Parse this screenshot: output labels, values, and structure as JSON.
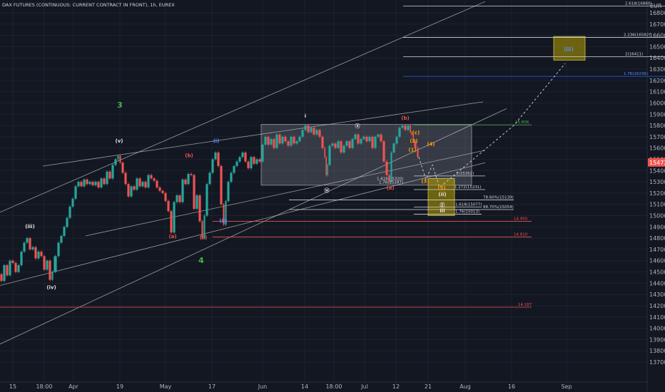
{
  "title": "DAX FUTURES (CONTINUOUS: CURRENT CONTRACT IN FRONT), 1h, EUREX",
  "currency": "EUR",
  "colors": {
    "background": "#131722",
    "up": "#26a69a",
    "down": "#ef5350",
    "trendline": "#c8c8c8",
    "green_label": "#4caf50",
    "red_label": "#ef5350",
    "blue_label": "#2962ff",
    "white_label": "#ffffff",
    "orange_label": "#ff9800",
    "box_fill": "#787b86",
    "target_box": "#b8a000"
  },
  "chart_data": {
    "type": "candlestick",
    "yaxis": {
      "min": 13600,
      "max": 16900,
      "ticks": [
        13700,
        13800,
        13900,
        14000,
        14100,
        14200,
        14300,
        14400,
        14500,
        14600,
        14700,
        14800,
        14900,
        15000,
        15100,
        15200,
        15300,
        15400,
        15500,
        15600,
        15700,
        15800,
        15900,
        16000,
        16100,
        16200,
        16300,
        16400,
        16500,
        16600,
        16700,
        16800
      ]
    },
    "current_price": {
      "value": "15472",
      "y": 15472
    },
    "xaxis_ticks": [
      {
        "label": "15",
        "x": 0
      },
      {
        "label": "18:00",
        "x": 1
      },
      {
        "label": "Apr",
        "x": 2
      },
      {
        "label": "19",
        "x": 3
      },
      {
        "label": "May",
        "x": 4
      },
      {
        "label": "17",
        "x": 5
      },
      {
        "label": "Jun",
        "x": 6
      },
      {
        "label": "14",
        "x": 7
      },
      {
        "label": "18:00",
        "x": 8
      },
      {
        "label": "Jul",
        "x": 9
      },
      {
        "label": "12",
        "x": 10
      },
      {
        "label": "21",
        "x": 11
      },
      {
        "label": "Aug",
        "x": 12
      },
      {
        "label": "16",
        "x": 13
      },
      {
        "label": "Sep",
        "x": 14
      }
    ],
    "price_path": [
      [
        0,
        14480
      ],
      [
        4,
        14420
      ],
      [
        8,
        14560
      ],
      [
        12,
        14470
      ],
      [
        16,
        14600
      ],
      [
        20,
        14580
      ],
      [
        24,
        14500
      ],
      [
        28,
        14560
      ],
      [
        32,
        14680
      ],
      [
        36,
        14760
      ],
      [
        40,
        14800
      ],
      [
        44,
        14700
      ],
      [
        48,
        14720
      ],
      [
        52,
        14620
      ],
      [
        56,
        14680
      ],
      [
        60,
        14640
      ],
      [
        64,
        14520
      ],
      [
        68,
        14600
      ],
      [
        72,
        14430
      ],
      [
        75,
        14500
      ],
      [
        80,
        14640
      ],
      [
        84,
        14760
      ],
      [
        88,
        14820
      ],
      [
        92,
        14900
      ],
      [
        96,
        14980
      ],
      [
        100,
        15080
      ],
      [
        104,
        15150
      ],
      [
        108,
        15260
      ],
      [
        112,
        15300
      ],
      [
        116,
        15260
      ],
      [
        120,
        15320
      ],
      [
        124,
        15280
      ],
      [
        128,
        15300
      ],
      [
        132,
        15270
      ],
      [
        136,
        15300
      ],
      [
        140,
        15250
      ],
      [
        144,
        15330
      ],
      [
        148,
        15280
      ],
      [
        152,
        15390
      ],
      [
        156,
        15330
      ],
      [
        160,
        15450
      ],
      [
        164,
        15500
      ],
      [
        167,
        15530
      ],
      [
        170,
        15470
      ],
      [
        174,
        15380
      ],
      [
        178,
        15280
      ],
      [
        182,
        15170
      ],
      [
        186,
        15260
      ],
      [
        190,
        15230
      ],
      [
        194,
        15330
      ],
      [
        198,
        15260
      ],
      [
        202,
        15300
      ],
      [
        206,
        15250
      ],
      [
        210,
        15360
      ],
      [
        214,
        15330
      ],
      [
        218,
        15310
      ],
      [
        222,
        15250
      ],
      [
        226,
        15220
      ],
      [
        230,
        15200
      ],
      [
        234,
        15130
      ],
      [
        238,
        15040
      ],
      [
        242,
        14850
      ],
      [
        246,
        15120
      ],
      [
        250,
        15180
      ],
      [
        254,
        15120
      ],
      [
        258,
        15320
      ],
      [
        262,
        15280
      ],
      [
        266,
        15370
      ],
      [
        270,
        15360
      ],
      [
        274,
        15060
      ],
      [
        278,
        15180
      ],
      [
        282,
        14950
      ],
      [
        285,
        14800
      ],
      [
        288,
        15000
      ],
      [
        292,
        15280
      ],
      [
        296,
        15380
      ],
      [
        300,
        15500
      ],
      [
        304,
        15560
      ],
      [
        308,
        15440
      ],
      [
        312,
        15100
      ],
      [
        315,
        14920
      ],
      [
        318,
        15130
      ],
      [
        322,
        15300
      ],
      [
        326,
        15380
      ],
      [
        330,
        15440
      ],
      [
        334,
        15480
      ],
      [
        338,
        15520
      ],
      [
        342,
        15560
      ],
      [
        346,
        15480
      ],
      [
        350,
        15420
      ],
      [
        354,
        15520
      ],
      [
        358,
        15460
      ],
      [
        362,
        15500
      ],
      [
        366,
        15480
      ],
      [
        370,
        15630
      ],
      [
        374,
        15700
      ],
      [
        378,
        15630
      ],
      [
        382,
        15680
      ],
      [
        386,
        15600
      ],
      [
        390,
        15720
      ],
      [
        394,
        15640
      ],
      [
        398,
        15700
      ],
      [
        402,
        15660
      ],
      [
        406,
        15620
      ],
      [
        410,
        15700
      ],
      [
        414,
        15640
      ],
      [
        418,
        15660
      ],
      [
        422,
        15700
      ],
      [
        426,
        15760
      ],
      [
        430,
        15800
      ],
      [
        434,
        15740
      ],
      [
        438,
        15780
      ],
      [
        442,
        15720
      ],
      [
        446,
        15760
      ],
      [
        450,
        15700
      ],
      [
        454,
        15600
      ],
      [
        456,
        15520
      ],
      [
        458,
        15360
      ],
      [
        460,
        15450
      ],
      [
        464,
        15620
      ],
      [
        468,
        15640
      ],
      [
        472,
        15600
      ],
      [
        476,
        15660
      ],
      [
        480,
        15560
      ],
      [
        484,
        15620
      ],
      [
        488,
        15660
      ],
      [
        492,
        15600
      ],
      [
        496,
        15680
      ],
      [
        500,
        15720
      ],
      [
        504,
        15640
      ],
      [
        508,
        15680
      ],
      [
        512,
        15700
      ],
      [
        516,
        15660
      ],
      [
        520,
        15700
      ],
      [
        524,
        15600
      ],
      [
        528,
        15700
      ],
      [
        532,
        15720
      ],
      [
        536,
        15660
      ],
      [
        540,
        15480
      ],
      [
        544,
        15360
      ],
      [
        547,
        15300
      ],
      [
        550,
        15560
      ],
      [
        554,
        15640
      ],
      [
        558,
        15700
      ],
      [
        562,
        15780
      ],
      [
        566,
        15800
      ],
      [
        570,
        15760
      ],
      [
        574,
        15800
      ],
      [
        576,
        15740
      ],
      [
        578,
        15720
      ],
      [
        580,
        15660
      ],
      [
        584,
        15600
      ],
      [
        587,
        15520
      ]
    ],
    "projection": [
      [
        587,
        15520
      ],
      [
        597,
        15320
      ],
      [
        606,
        15450
      ],
      [
        616,
        15250
      ],
      [
        720,
        15800
      ],
      [
        792,
        16350
      ]
    ],
    "annotations": {
      "waves": [
        {
          "text": "3",
          "color": "green",
          "x": 168,
          "y": 15960,
          "size": "big"
        },
        {
          "text": "(v)",
          "color": "white",
          "x": 167,
          "y": 15650
        },
        {
          "text": "(iii)",
          "color": "white",
          "x": 42,
          "y": 14890
        },
        {
          "text": "(iv)",
          "color": "white",
          "x": 72,
          "y": 14350
        },
        {
          "text": "(b)",
          "color": "red",
          "x": 265,
          "y": 15520
        },
        {
          "text": "(a)",
          "color": "red",
          "x": 242,
          "y": 14800
        },
        {
          "text": "(c)",
          "color": "red",
          "x": 285,
          "y": 14790
        },
        {
          "text": "(i)",
          "color": "blue",
          "x": 303,
          "y": 15650
        },
        {
          "text": "(ii)",
          "color": "blue",
          "x": 313,
          "y": 14940
        },
        {
          "text": "4",
          "color": "green",
          "x": 282,
          "y": 14580,
          "size": "big"
        },
        {
          "text": "i",
          "color": "white",
          "x": 428,
          "y": 15870
        },
        {
          "text": "ⓐ",
          "color": "white",
          "x": 501,
          "y": 15780
        },
        {
          "text": "ⓦ",
          "color": "white",
          "x": 458,
          "y": 15210
        },
        {
          "text": "(b)",
          "color": "red",
          "x": 568,
          "y": 15850
        },
        {
          "text": "(a)",
          "color": "red",
          "x": 547,
          "y": 15230
        },
        {
          "text": "(c)",
          "color": "orange",
          "x": 583,
          "y": 15720
        },
        {
          "text": "(1)",
          "color": "orange",
          "x": 578,
          "y": 15570
        },
        {
          "text": "(2)",
          "color": "orange",
          "x": 580,
          "y": 15650
        },
        {
          "text": "(4)",
          "color": "orange",
          "x": 604,
          "y": 15620
        },
        {
          "text": "(3)",
          "color": "orange",
          "x": 596,
          "y": 15290
        },
        {
          "text": "(5)",
          "color": "orange",
          "x": 619,
          "y": 15230
        },
        {
          "text": "(ii)",
          "color": "white",
          "x": 620,
          "y": 15175
        },
        {
          "text": "Ⓔ",
          "color": "white",
          "x": 620,
          "y": 15080
        },
        {
          "text": "iii",
          "color": "white",
          "x": 620,
          "y": 15030
        },
        {
          "text": "(iii)",
          "color": "blue",
          "x": 797,
          "y": 16460
        }
      ],
      "hlines": [
        {
          "value": 16860,
          "x1": 565,
          "x2": 932,
          "color": "#d1d4dc",
          "label": "2.618(16860)",
          "label_x": 876,
          "label_color": "white"
        },
        {
          "value": 16582,
          "x1": 565,
          "x2": 932,
          "color": "#d1d4dc",
          "label": "2.236(16582)",
          "label_x": 874,
          "label_color": "white"
        },
        {
          "value": 16411,
          "x1": 565,
          "x2": 932,
          "color": "#d1d4dc",
          "label": "2(16411)",
          "label_x": 876,
          "label_color": "white"
        },
        {
          "value": 16236,
          "x1": 565,
          "x2": 932,
          "color": "#2962ff",
          "label": "1.76(16236)",
          "label_x": 874,
          "label_color": "blue"
        },
        {
          "value": 15806,
          "x1": 580,
          "x2": 745,
          "color": "#4caf50",
          "label": "15.806",
          "label_x": 722,
          "label_color": "green"
        },
        {
          "value": 15352,
          "x1": 580,
          "x2": 680,
          "color": "#d1d4dc",
          "label": "1(15352)",
          "label_x": 639,
          "label_color": "white"
        },
        {
          "value": 15231,
          "x1": 580,
          "x2": 680,
          "color": "#d1d4dc",
          "label": "1.272(15231)",
          "label_x": 637,
          "label_color": "white"
        },
        {
          "value": 15139,
          "x1": 405,
          "x2": 720,
          "color": "#d1d4dc",
          "label": "78.60%(15139)",
          "label_x": 677,
          "label_color": "white"
        },
        {
          "value": 15054,
          "x1": 405,
          "x2": 720,
          "color": "#d1d4dc",
          "label": "88.70%(15054)",
          "label_x": 677,
          "label_color": "white"
        },
        {
          "value": 15077,
          "x1": 580,
          "x2": 675,
          "color": "#d1d4dc",
          "label": "1.618(15077)",
          "label_x": 638,
          "label_color": "white"
        },
        {
          "value": 15013,
          "x1": 580,
          "x2": 675,
          "color": "#d1d4dc",
          "label": "1.76(15013)",
          "label_x": 638,
          "label_color": "white"
        },
        {
          "value": 14950,
          "x1": 298,
          "x2": 745,
          "color": "#ef5350",
          "label": "14.950",
          "label_x": 720,
          "label_color": "red"
        },
        {
          "value": 14810,
          "x1": 298,
          "x2": 745,
          "color": "#ef5350",
          "label": "14.810",
          "label_x": 720,
          "label_color": "red"
        },
        {
          "value": 14187,
          "x1": 0,
          "x2": 745,
          "color": "#ef5350",
          "label": "14.187",
          "label_x": 726,
          "label_color": "red"
        }
      ],
      "text_labels": [
        {
          "text": "1.618(15320)",
          "x": 528,
          "y": 15318
        },
        {
          "text": "1.76(15287)",
          "x": 531,
          "y": 15284
        }
      ],
      "range_box": {
        "x1": 366,
        "x2": 661,
        "y_top": 15810,
        "y_bottom": 15270
      },
      "target_box_lower": {
        "x1": 600,
        "x2": 637,
        "y_top": 15330,
        "y_bottom": 15000
      },
      "target_box_upper": {
        "x1": 776,
        "x2": 820,
        "y_top": 16590,
        "y_bottom": 16380
      },
      "trendlines": [
        [
          0,
          15030,
          680,
          16900
        ],
        [
          0,
          13860,
          710,
          15950
        ],
        [
          60,
          15440,
          677,
          16010
        ],
        [
          0,
          14380,
          680,
          15470
        ],
        [
          120,
          14820,
          680,
          15580
        ]
      ]
    }
  }
}
